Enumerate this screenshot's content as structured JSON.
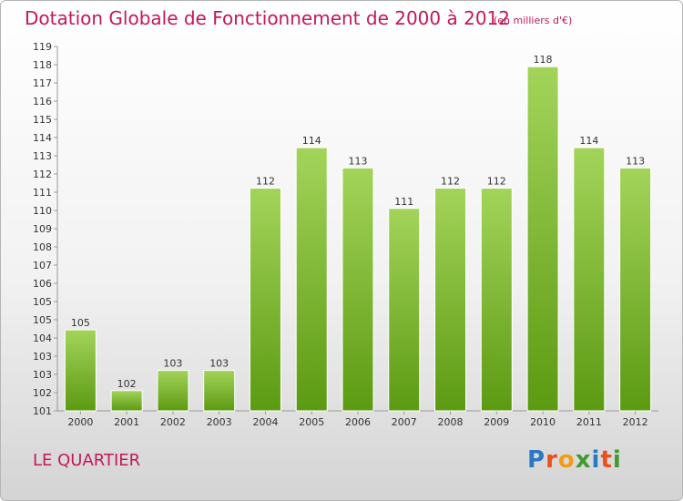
{
  "header": {
    "title": "Dotation Globale de Fonctionnement de 2000 à 2012",
    "unit": "(en milliers d'€)"
  },
  "footer": {
    "commune": "LE QUARTIER",
    "brand": "Proxiti"
  },
  "chart_data": {
    "type": "bar",
    "title": "Dotation Globale de Fonctionnement de 2000 à 2012",
    "subtitle": "(en milliers d'€)",
    "categories": [
      "2000",
      "2001",
      "2002",
      "2003",
      "2004",
      "2005",
      "2006",
      "2007",
      "2008",
      "2009",
      "2010",
      "2011",
      "2012"
    ],
    "values": [
      105,
      102,
      103,
      103,
      112,
      114,
      113,
      111,
      112,
      112,
      118,
      114,
      113
    ],
    "ylim": [
      101,
      119
    ],
    "yticks": [
      "101",
      "102",
      "103",
      "103",
      "104",
      "105",
      "105",
      "106",
      "107",
      "108",
      "109",
      "110",
      "111",
      "112",
      "113",
      "114",
      "115",
      "116",
      "117",
      "118",
      "119"
    ],
    "grid": false,
    "legend": "none",
    "colors": {
      "bar_light": "#a3d45a",
      "bar_dark": "#5c9a12",
      "axis": "#999999",
      "title": "#c2185b"
    }
  }
}
